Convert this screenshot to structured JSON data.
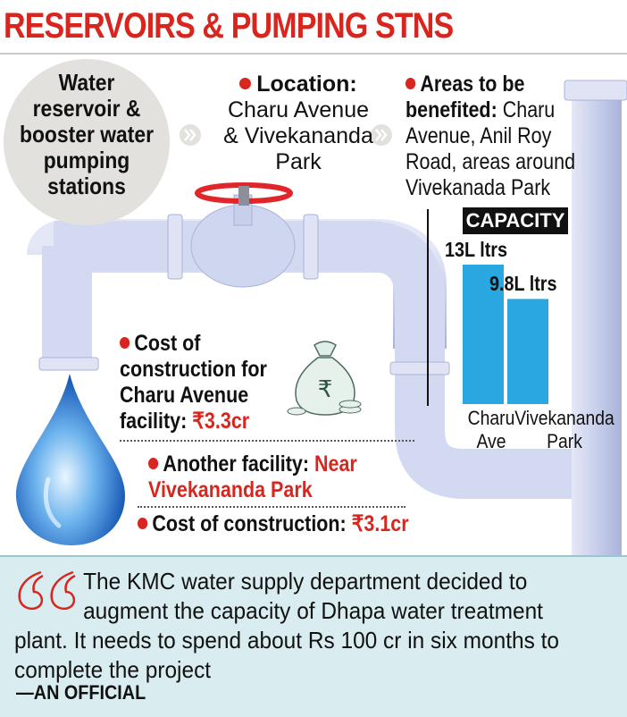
{
  "title": {
    "text": "RESERVOIRS & PUMPING STNS",
    "color": "#d8261f"
  },
  "intro_bubble": {
    "lines": [
      "Water",
      "reservoir &",
      "booster water",
      "pumping",
      "stations"
    ]
  },
  "location": {
    "label": "Location:",
    "lines": [
      "Charu Avenue",
      "& Vivekananda",
      "Park"
    ]
  },
  "areas": {
    "label_lines": [
      "Areas to be",
      "benefited:"
    ],
    "text_lines": [
      "Charu",
      "Avenue, Anil Roy",
      "Road, areas around",
      "Vivekanada Park"
    ]
  },
  "chart_data": {
    "type": "bar",
    "title": "CAPACITY",
    "categories": [
      "Charu Ave",
      "Vivekananda Park"
    ],
    "category_lines": [
      [
        "Charu",
        "Ave"
      ],
      [
        "Vivekananda",
        "Park"
      ]
    ],
    "values": [
      13,
      9.8
    ],
    "value_labels": [
      "13L ltrs",
      "9.8L ltrs"
    ],
    "unit": "L ltrs",
    "bar_color": "#29a7e1",
    "ylim": [
      0,
      13
    ]
  },
  "cost_charu": {
    "lines": [
      "Cost of",
      "construction for",
      "Charu Avenue",
      "facility:"
    ],
    "value": "₹3.3cr"
  },
  "another_facility": {
    "label": "Another facility:",
    "value_lines": [
      "Near",
      "Vivekananda Park"
    ]
  },
  "cost_other": {
    "label": "Cost of construction:",
    "value": "₹3.1cr"
  },
  "quote": {
    "lines": [
      "The KMC water supply department decided to",
      "augment the capacity of Dhapa water treatment",
      "plant. It needs to spend about Rs 100 cr in six months to",
      "complete the project"
    ],
    "attribution": "—AN OFFICIAL"
  },
  "colors": {
    "accent_red": "#d8261f",
    "pipe": "#c9d1ec",
    "pipe_shadow": "#aab3d8",
    "valve_red": "#e0262b",
    "quote_bg": "#d9ecef",
    "water_drop": "#2f7fd6"
  },
  "icons": [
    "chevron-right-icon",
    "pipe-illustration",
    "valve-wheel-icon",
    "water-drop-icon",
    "rupee-money-bag-icon",
    "quotation-mark-icon"
  ]
}
